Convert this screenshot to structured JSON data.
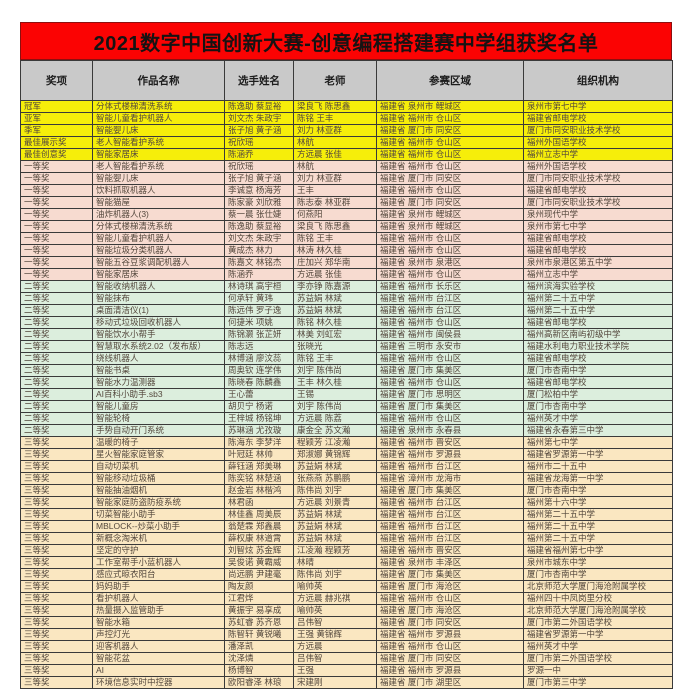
{
  "title": "2021数字中国创新大赛-创意编程搭建赛中学组获奖名单",
  "colors": {
    "banner_bg": "#fb0303",
    "header_bg": "#c9c9c9",
    "tiers": {
      "special": "#f6ee0a",
      "first": "#f7dbd0",
      "second": "#dceedd",
      "third": "#fae7c1"
    }
  },
  "table": {
    "headers": [
      "奖项",
      "作品名称",
      "选手姓名",
      "老师",
      "参赛区域",
      "组织机构"
    ],
    "rows": [
      {
        "tier": "special",
        "award": "冠军",
        "work": "分体式楼梯清洗系统",
        "players": "陈逸助 蔡显裕",
        "teacher": "梁良飞 陈思鑫",
        "region": "福建省 泉州市 鲤城区",
        "org": "泉州市第七中学"
      },
      {
        "tier": "special",
        "award": "亚军",
        "work": "智能儿童看护机器人",
        "players": "刘文杰 朱政宇",
        "teacher": "陈铭 王丰",
        "region": "福建省 福州市 仓山区",
        "org": "福建省邮电学校"
      },
      {
        "tier": "special",
        "award": "季军",
        "work": "智能婴儿床",
        "players": "张子旭 黄子涵",
        "teacher": "刘力 林亚群",
        "region": "福建省 厦门市 同安区",
        "org": "厦门市同安职业技术学校"
      },
      {
        "tier": "special",
        "award": "最佳展示奖",
        "work": "老人智能看护系统",
        "players": "祝欣瑶",
        "teacher": "林航",
        "region": "福建省 福州市 仓山区",
        "org": "福州外国语学校"
      },
      {
        "tier": "special",
        "award": "最佳创意奖",
        "work": "智能家居床",
        "players": "陈涵乔",
        "teacher": "方远晨 张佳",
        "region": "福建省 福州市 仓山区",
        "org": "福州立志中学"
      },
      {
        "tier": "first",
        "award": "一等奖",
        "work": "老人智能看护系统",
        "players": "祝欣瑶",
        "teacher": "林航",
        "region": "福建省 福州市 仓山区",
        "org": "福州外国语学校"
      },
      {
        "tier": "first",
        "award": "一等奖",
        "work": "智能婴儿床",
        "players": "张子旭 黄子涵",
        "teacher": "刘力 林亚群",
        "region": "福建省 厦门市 同安区",
        "org": "厦门市同安职业技术学校"
      },
      {
        "tier": "first",
        "award": "一等奖",
        "work": "饮料抓取机器人",
        "players": "李诚意 杨海芳",
        "teacher": "王丰",
        "region": "福建省 福州市 仓山区",
        "org": "福建省邮电学校"
      },
      {
        "tier": "first",
        "award": "一等奖",
        "work": "智能猫屋",
        "players": "陈家豪 刘欣雅",
        "teacher": "陈志泰 林亚群",
        "region": "福建省 厦门市 同安区",
        "org": "厦门市同安职业技术学校"
      },
      {
        "tier": "first",
        "award": "一等奖",
        "work": "油炸机器人(3)",
        "players": "蔡一晨 张仕婕",
        "teacher": "何燕阳",
        "region": "福建省 泉州市 鲤城区",
        "org": "泉州现代中学"
      },
      {
        "tier": "first",
        "award": "一等奖",
        "work": "分体式楼梯清洗系统",
        "players": "陈逸助 蔡显裕",
        "teacher": "梁良飞 陈思鑫",
        "region": "福建省 泉州市 鲤城区",
        "org": "泉州市第七中学"
      },
      {
        "tier": "first",
        "award": "一等奖",
        "work": "智能儿童看护机器人",
        "players": "刘文杰 朱政宇",
        "teacher": "陈铭 王丰",
        "region": "福建省 福州市 仓山区",
        "org": "福建省邮电学校"
      },
      {
        "tier": "first",
        "award": "一等奖",
        "work": "智能垃圾分类机器人",
        "players": "黄成杰 林力",
        "teacher": "林涛 林久桂",
        "region": "福建省 福州市 仓山区",
        "org": "福建省邮电学校"
      },
      {
        "tier": "first",
        "award": "一等奖",
        "work": "智能五谷豆浆调配机器人",
        "players": "陈嘉文 林铭杰",
        "teacher": "庄加兴 郑华南",
        "region": "福建省 泉州市 泉港区",
        "org": "泉州市泉港区第五中学"
      },
      {
        "tier": "first",
        "award": "一等奖",
        "work": "智能家居床",
        "players": "陈涵乔",
        "teacher": "方远晨 张佳",
        "region": "福建省 福州市 仓山区",
        "org": "福州立志中学"
      },
      {
        "tier": "second",
        "award": "二等奖",
        "work": "智能收纳机器人",
        "players": "林诗琪 高宇桓",
        "teacher": "李亦铮 陈嘉源",
        "region": "福建省 福州市 长乐区",
        "org": "福州滨海实验学校"
      },
      {
        "tier": "second",
        "award": "二等奖",
        "work": "智能抹布",
        "players": "何承轩 黄玮",
        "teacher": "苏益娟 林斌",
        "region": "福建省 福州市 台江区",
        "org": "福州第二十五中学"
      },
      {
        "tier": "second",
        "award": "二等奖",
        "work": "桌面清洁仪(1)",
        "players": "陈远伟 罗子逸",
        "teacher": "苏益娟 林斌",
        "region": "福建省 福州市 台江区",
        "org": "福州第二十五中学"
      },
      {
        "tier": "second",
        "award": "二等奖",
        "work": "移动式垃圾回收机器人",
        "players": "何捷米 项姚",
        "teacher": "陈铭 林久桂",
        "region": "福建省 福州市 仓山区",
        "org": "福建省邮电学校"
      },
      {
        "tier": "second",
        "award": "二等奖",
        "work": "智能饮水小帮手",
        "players": "陈锦灏 张芷妍",
        "teacher": "林美 刘虹宏",
        "region": "福建省 福州市 闽侯县",
        "org": "福州高新区南屿初级中学"
      },
      {
        "tier": "second",
        "award": "二等奖",
        "work": "智慧取水系统2.02（发布版）",
        "players": "陈志远",
        "teacher": "张晓光",
        "region": "福建省 三明市 永安市",
        "org": "福建水利电力职业技术学院"
      },
      {
        "tier": "second",
        "award": "二等奖",
        "work": "绕线机器人",
        "players": "林博涵 廖汶蕊",
        "teacher": "陈铭 王丰",
        "region": "福建省 福州市 仓山区",
        "org": "福建省邮电学校"
      },
      {
        "tier": "second",
        "award": "二等奖",
        "work": "智能书桌",
        "players": "周奥钦 连学伟",
        "teacher": "刘宇 陈伟尚",
        "region": "福建省 厦门市 集美区",
        "org": "厦门市杏南中学"
      },
      {
        "tier": "second",
        "award": "二等奖",
        "work": "智能水力温测器",
        "players": "陈晓春 陈麟鑫",
        "teacher": "王丰 林久桂",
        "region": "福建省 福州市 仓山区",
        "org": "福建省邮电学校"
      },
      {
        "tier": "second",
        "award": "二等奖",
        "work": "AI百科小助手.sb3",
        "players": "王心蕾",
        "teacher": "王锡",
        "region": "福建省 厦门市 思明区",
        "org": "厦门松柏中学"
      },
      {
        "tier": "second",
        "award": "二等奖",
        "work": "智能儿童房",
        "players": "胡贝宁 杨诺",
        "teacher": "刘宇 陈伟尚",
        "region": "福建省 厦门市 集美区",
        "org": "厦门市杏南中学"
      },
      {
        "tier": "second",
        "award": "二等奖",
        "work": "智能轮椅",
        "players": "王梓城 杨铭坤",
        "teacher": "方远晨 陈荔",
        "region": "福建省 福州市 仓山区",
        "org": "福州英才中学"
      },
      {
        "tier": "second",
        "award": "二等奖",
        "work": "手势自动开门系统",
        "players": "苏琳涵 尤孜璇",
        "teacher": "康金全 苏文瀚",
        "region": "福建省 泉州市 永春县",
        "org": "福建省永春第三中学"
      },
      {
        "tier": "third",
        "award": "三等奖",
        "work": "温暖的椅子",
        "players": "陈海东 李梦洋",
        "teacher": "程颖芳 江凌瀚",
        "region": "福建省 福州市 晋安区",
        "org": "福州第七中学"
      },
      {
        "tier": "third",
        "award": "三等奖",
        "work": "星火智能家庭管家",
        "players": "叶冠廷 林帅",
        "teacher": "郑淑娜 黄锦辉",
        "region": "福建省 福州市 罗源县",
        "org": "福建省罗源第一中学"
      },
      {
        "tier": "third",
        "award": "三等奖",
        "work": "自动切菜机",
        "players": "薛钰涵 郑美琳",
        "teacher": "苏益娟 林斌",
        "region": "福建省 福州市 台江区",
        "org": "福州市二十五中"
      },
      {
        "tier": "third",
        "award": "三等奖",
        "work": "智能移动垃圾桶",
        "players": "陈奕铭 林楚涵",
        "teacher": "张燕燕 苏鹏鹏",
        "region": "福建省 漳州市 龙海市",
        "org": "福建省龙海第一中学"
      },
      {
        "tier": "third",
        "award": "三等奖",
        "work": "智能抽油烟机",
        "players": "赵金岩 林楷鸿",
        "teacher": "陈伟尚 刘宇",
        "region": "福建省 厦门市 集美区",
        "org": "厦门市杏南中学"
      },
      {
        "tier": "third",
        "award": "三等奖",
        "work": "智能家庭防盗防疫系统",
        "players": "林君函",
        "teacher": "方远晨 刘景青",
        "region": "福建省 福州市 台江区",
        "org": "福州第十六中学"
      },
      {
        "tier": "third",
        "award": "三等奖",
        "work": "切菜智能小助手",
        "players": "林佳鑫 周美辰",
        "teacher": "苏益娟 林斌",
        "region": "福建省 福州市 台江区",
        "org": "福州第二十五中学"
      },
      {
        "tier": "third",
        "award": "三等奖",
        "work": "MBLOCK--炒菜小助手",
        "players": "翁楚霖 郑鑫晨",
        "teacher": "苏益娟 林斌",
        "region": "福建省 福州市 台江区",
        "org": "福州第二十五中学"
      },
      {
        "tier": "third",
        "award": "三等奖",
        "work": "新概念淘米机",
        "players": "薛权康 林道霄",
        "teacher": "苏益娟 林斌",
        "region": "福建省 福州市 台江区",
        "org": "福州第二十五中学"
      },
      {
        "tier": "third",
        "award": "三等奖",
        "work": "坚定的守护",
        "players": "刘智炫 苏金辉",
        "teacher": "江凌瀚 程颖芳",
        "region": "福建省 福州市 晋安区",
        "org": "福建省福州第七中学"
      },
      {
        "tier": "third",
        "award": "三等奖",
        "work": "工作室帮手小蓝机器人",
        "players": "吴俊诺 黄霸威",
        "teacher": "林晴",
        "region": "福建省 泉州市 丰泽区",
        "org": "泉州市城东中学"
      },
      {
        "tier": "third",
        "award": "三等奖",
        "work": "感应式晾衣阳台",
        "players": "尚远鹏 尹建毫",
        "teacher": "陈伟尚 刘宇",
        "region": "福建省 厦门市 集美区",
        "org": "厦门市杏南中学"
      },
      {
        "tier": "third",
        "award": "三等奖",
        "work": "妈妈助手",
        "players": "陶友颜",
        "teacher": "喻帅英",
        "region": "福建省 厦门市 海沧区",
        "org": "北京师范大学厦门海沧附属学校"
      },
      {
        "tier": "third",
        "award": "三等奖",
        "work": "看护机器人",
        "players": "江君烨",
        "teacher": "方远晨 赫兆祺",
        "region": "福建省 福州市 仓山区",
        "org": "福州四十中凤岗里分校"
      },
      {
        "tier": "third",
        "award": "三等奖",
        "work": "热量摄入监管助手",
        "players": "黄振宇 易享成",
        "teacher": "喻帅英",
        "region": "福建省 厦门市 海沧区",
        "org": "北京师范大学厦门海沧附属学校"
      },
      {
        "tier": "third",
        "award": "三等奖",
        "work": "智能水箱",
        "players": "苏虹睿 苏齐恩",
        "teacher": "吕伟智",
        "region": "福建省 厦门市 同安区",
        "org": "厦门市第二外国语学校"
      },
      {
        "tier": "third",
        "award": "三等奖",
        "work": "声控灯光",
        "players": "陈智轩 黄锐曦",
        "teacher": "王强 黄锦辉",
        "region": "福建省 福州市 罗源县",
        "org": "福建省罗源第一中学"
      },
      {
        "tier": "third",
        "award": "三等奖",
        "work": "迎客机器人",
        "players": "潘泽凯",
        "teacher": "方远晨",
        "region": "福建省 福州市 仓山区",
        "org": "福州英才中学"
      },
      {
        "tier": "third",
        "award": "三等奖",
        "work": "智能花盆",
        "players": "沈泽燐",
        "teacher": "吕伟智",
        "region": "福建省 厦门市 同安区",
        "org": "厦门市第二外国语学校"
      },
      {
        "tier": "third",
        "award": "三等奖",
        "work": "AI",
        "players": "杨博智",
        "teacher": "王强",
        "region": "福建省 福州市 罗源县",
        "org": "罗源一中"
      },
      {
        "tier": "third",
        "award": "三等奖",
        "work": "环境信息实时中控器",
        "players": "欧阳睿泽 林琅",
        "teacher": "宋建刚",
        "region": "福建省 厦门市 湖里区",
        "org": "厦门市第三中学"
      }
    ]
  }
}
